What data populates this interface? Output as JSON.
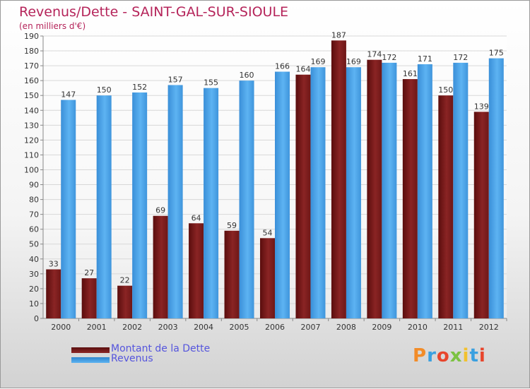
{
  "title": "Revenus/Dette - SAINT-GAL-SUR-SIOULE",
  "subtitle": "(en milliers d'€)",
  "colors": {
    "title": "#b5245a",
    "debt": "#7a1a1a",
    "revenue": "#4aa3ea",
    "grid": "#d8d8d8",
    "axis": "#888888",
    "legend_text": "#5555dd"
  },
  "legend": {
    "debt_label": "Montant de la Dette",
    "revenue_label": "Revenus"
  },
  "logo": {
    "text": "Proxiti"
  },
  "chart_data": {
    "type": "bar",
    "categories": [
      "2000",
      "2001",
      "2002",
      "2003",
      "2004",
      "2005",
      "2006",
      "2007",
      "2008",
      "2009",
      "2010",
      "2011",
      "2012"
    ],
    "series": [
      {
        "name": "Montant de la Dette",
        "values": [
          33,
          27,
          22,
          69,
          64,
          59,
          54,
          164,
          187,
          174,
          161,
          150,
          139
        ]
      },
      {
        "name": "Revenus",
        "values": [
          147,
          150,
          152,
          157,
          155,
          160,
          166,
          169,
          169,
          172,
          171,
          172,
          175
        ]
      }
    ],
    "ylim": [
      0,
      190
    ],
    "yticks": [
      0,
      10,
      20,
      30,
      40,
      50,
      60,
      70,
      80,
      90,
      100,
      110,
      120,
      130,
      140,
      150,
      160,
      170,
      180,
      190
    ],
    "grid": true,
    "legend_position": "bottom-left"
  }
}
